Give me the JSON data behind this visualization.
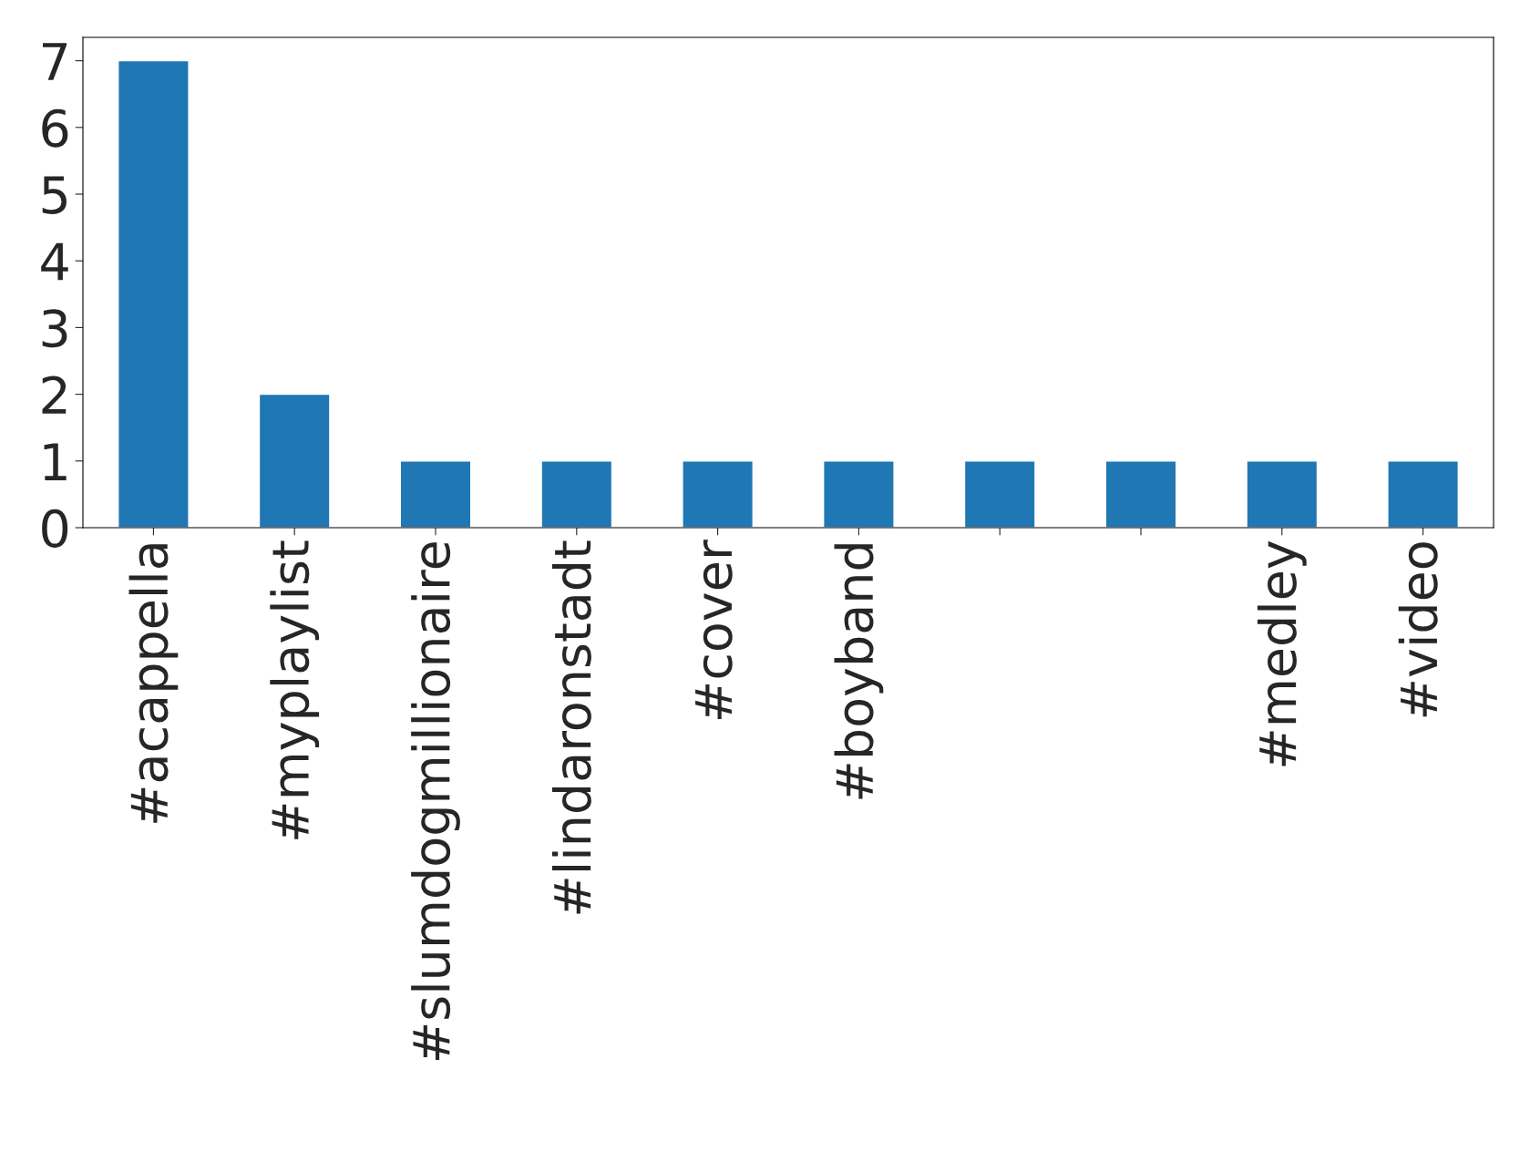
{
  "chart_data": {
    "type": "bar",
    "categories": [
      "#acappella",
      "#myplaylist",
      "#slumdogmillionaire",
      "#lindaronstadt",
      "#cover",
      "#boyband",
      null,
      null,
      "#medley",
      "#video"
    ],
    "values": [
      7,
      2,
      1,
      1,
      1,
      1,
      1,
      1,
      1,
      1
    ],
    "color": "#1f77b4",
    "ylim": [
      0,
      7.35
    ],
    "yticks": [
      0,
      1,
      2,
      3,
      4,
      5,
      6,
      7
    ],
    "grid": false,
    "legend": false
  }
}
